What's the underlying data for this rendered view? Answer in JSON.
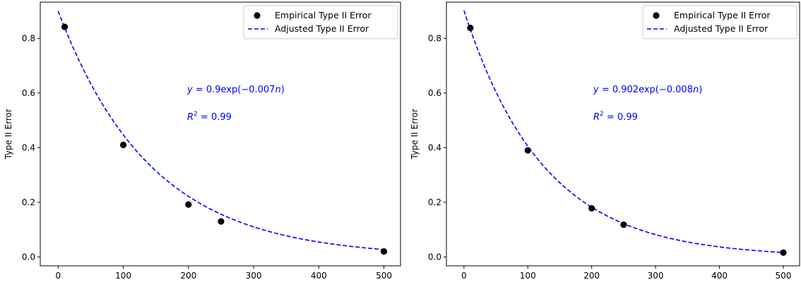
{
  "chart_data": [
    {
      "type": "scatter",
      "title": "",
      "xlabel": "",
      "ylabel": "Type II Error",
      "xlim": [
        -27.45,
        525.45
      ],
      "ylim": [
        -0.0325,
        0.9325
      ],
      "xticks": [
        0,
        100,
        200,
        300,
        400,
        500
      ],
      "yticks": [
        0.0,
        0.2,
        0.4,
        0.6,
        0.8
      ],
      "xtick_labels": [
        "0",
        "100",
        "200",
        "300",
        "400",
        "500"
      ],
      "ytick_labels": [
        "0.0",
        "0.2",
        "0.4",
        "0.6",
        "0.8"
      ],
      "grid": false,
      "legend": {
        "position": "top-right",
        "entries": [
          {
            "label": "Empirical Type II Error",
            "marker": "circle",
            "color": "#000000"
          },
          {
            "label": "Adjusted Type II Error",
            "marker": "dashed-line",
            "color": "#0000ff"
          }
        ]
      },
      "series": [
        {
          "name": "Empirical Type II Error",
          "kind": "points",
          "color": "#000000",
          "x": [
            10,
            100,
            200,
            250,
            500
          ],
          "y": [
            0.842,
            0.41,
            0.192,
            0.13,
            0.02
          ]
        },
        {
          "name": "Adjusted Type II Error",
          "kind": "curve",
          "color": "#0000ff",
          "model": {
            "a": 0.9,
            "b": 0.007
          },
          "x_range": [
            0,
            500
          ]
        }
      ],
      "annotations": {
        "equation": {
          "prefix": "y",
          "mid": " = 0.9exp(−0.007",
          "var": "n",
          "suffix": ")"
        },
        "r2": {
          "base": "R",
          "sup": "2",
          "rest": " = 0.99"
        }
      }
    },
    {
      "type": "scatter",
      "title": "",
      "xlabel": "",
      "ylabel": "Type II Error",
      "xlim": [
        -27.45,
        525.45
      ],
      "ylim": [
        -0.0325,
        0.9325
      ],
      "xticks": [
        0,
        100,
        200,
        300,
        400,
        500
      ],
      "yticks": [
        0.0,
        0.2,
        0.4,
        0.6,
        0.8
      ],
      "xtick_labels": [
        "0",
        "100",
        "200",
        "300",
        "400",
        "500"
      ],
      "ytick_labels": [
        "0.0",
        "0.2",
        "0.4",
        "0.6",
        "0.8"
      ],
      "grid": false,
      "legend": {
        "position": "top-right",
        "entries": [
          {
            "label": "Empirical Type II Error",
            "marker": "circle",
            "color": "#000000"
          },
          {
            "label": "Adjusted Type II Error",
            "marker": "dashed-line",
            "color": "#0000ff"
          }
        ]
      },
      "series": [
        {
          "name": "Empirical Type II Error",
          "kind": "points",
          "color": "#000000",
          "x": [
            10,
            100,
            200,
            250,
            500
          ],
          "y": [
            0.838,
            0.39,
            0.178,
            0.118,
            0.016
          ]
        },
        {
          "name": "Adjusted Type II Error",
          "kind": "curve",
          "color": "#0000ff",
          "model": {
            "a": 0.902,
            "b": 0.008
          },
          "x_range": [
            0,
            500
          ]
        }
      ],
      "annotations": {
        "equation": {
          "prefix": "y",
          "mid": " = 0.902exp(−0.008",
          "var": "n",
          "suffix": ")"
        },
        "r2": {
          "base": "R",
          "sup": "2",
          "rest": " = 0.99"
        }
      }
    }
  ]
}
